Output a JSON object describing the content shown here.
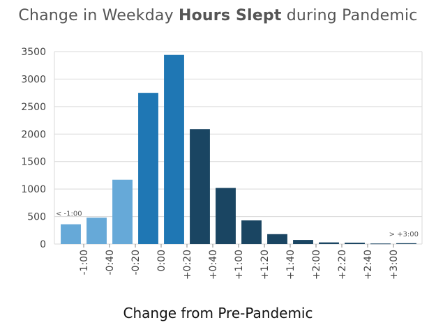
{
  "chart_data": {
    "type": "bar",
    "title_prefix": "Change in Weekday ",
    "title_bold": "Hours Slept",
    "title_suffix": " during Pandemic",
    "xlabel": "Change from Pre-Pandemic",
    "ylabel": "",
    "ylim": [
      0,
      3500
    ],
    "yticks": [
      0,
      500,
      1000,
      1500,
      2000,
      2500,
      3000,
      3500
    ],
    "grid": true,
    "x_tick_labels": [
      "-1:00",
      "-0:40",
      "-0:20",
      "0:00",
      "+0:20",
      "+0:40",
      "+1:00",
      "+1:20",
      "+1:40",
      "+2:00",
      "+2:20",
      "+2:40",
      "+3:00"
    ],
    "values": [
      360,
      480,
      1170,
      2750,
      3440,
      2090,
      1020,
      430,
      180,
      75,
      30,
      25,
      10,
      15
    ],
    "bar_groups": [
      "light",
      "light",
      "light",
      "mid",
      "mid",
      "dark",
      "dark",
      "dark",
      "dark",
      "dark",
      "dark",
      "dark",
      "dark",
      "dark"
    ],
    "colors": {
      "light": "#66a9d8",
      "mid": "#1f77b4",
      "dark": "#1a4562",
      "grid": "#d9d9d9"
    },
    "annotations": {
      "left": "< -1:00",
      "right": "> +3:00"
    }
  }
}
